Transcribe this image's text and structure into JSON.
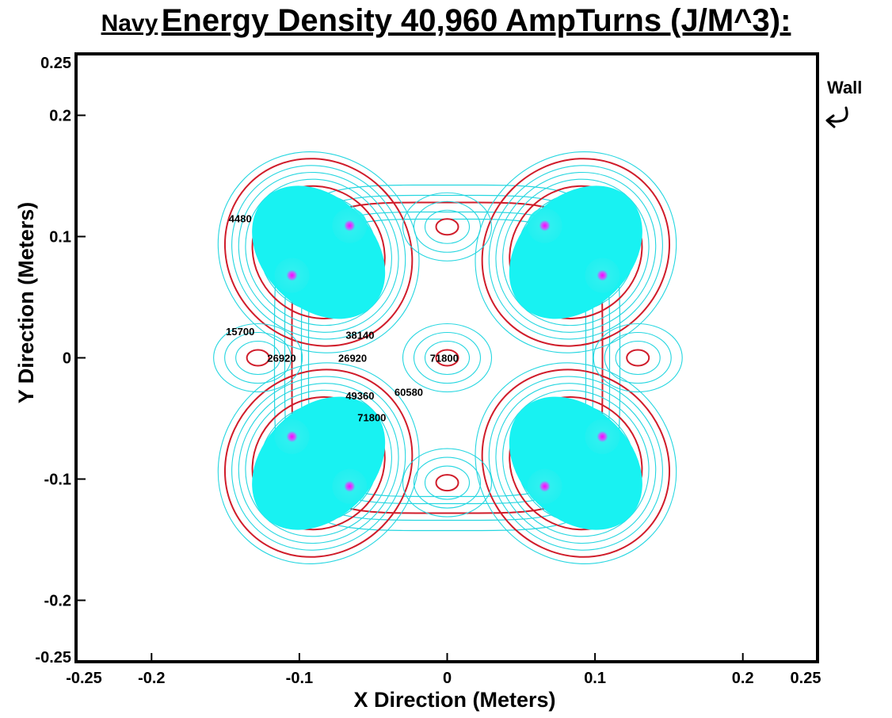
{
  "chart_data": {
    "type": "contour",
    "title_part1": "Navy",
    "title_part2": "Energy Density 40,960 AmpTurns (J/M^3):",
    "xlabel": "X Direction (Meters)",
    "ylabel": "Y  Direction (Meters)",
    "xlim": [
      -0.25,
      0.25
    ],
    "ylim": [
      -0.25,
      0.25
    ],
    "x_ticks": [
      {
        "value": -0.25,
        "label": "-0.25"
      },
      {
        "value": -0.2,
        "label": "-0.2"
      },
      {
        "value": -0.1,
        "label": "-0.1"
      },
      {
        "value": 0,
        "label": "0"
      },
      {
        "value": 0.1,
        "label": "0.1"
      },
      {
        "value": 0.2,
        "label": "0.2"
      },
      {
        "value": 0.25,
        "label": "0.25"
      }
    ],
    "y_ticks": [
      {
        "value": 0.25,
        "label": "0.25"
      },
      {
        "value": 0.2,
        "label": "0.2"
      },
      {
        "value": 0.1,
        "label": "0.1"
      },
      {
        "value": 0,
        "label": "0"
      },
      {
        "value": -0.1,
        "label": "-0.1"
      },
      {
        "value": -0.2,
        "label": "-0.2"
      },
      {
        "value": -0.25,
        "label": "-0.25"
      }
    ],
    "contour_labels": [
      {
        "text": "4480",
        "x": -0.14,
        "y": 0.115
      },
      {
        "text": "15700",
        "x": -0.14,
        "y": 0.022
      },
      {
        "text": "38140",
        "x": -0.059,
        "y": 0.019
      },
      {
        "text": "26920",
        "x": -0.112,
        "y": 0.0
      },
      {
        "text": "26920",
        "x": -0.064,
        "y": 0.0
      },
      {
        "text": "71800",
        "x": -0.002,
        "y": 0.0
      },
      {
        "text": "49360",
        "x": -0.059,
        "y": -0.031
      },
      {
        "text": "60580",
        "x": -0.026,
        "y": -0.028
      },
      {
        "text": "71800",
        "x": -0.051,
        "y": -0.049
      }
    ],
    "peaks": [
      {
        "x": -0.066,
        "y": 0.109
      },
      {
        "x": -0.105,
        "y": 0.068
      },
      {
        "x": 0.066,
        "y": 0.109
      },
      {
        "x": 0.105,
        "y": 0.068
      },
      {
        "x": -0.105,
        "y": -0.065
      },
      {
        "x": -0.066,
        "y": -0.106
      },
      {
        "x": 0.105,
        "y": -0.065
      },
      {
        "x": 0.066,
        "y": -0.106
      }
    ],
    "wall_label": "Wall",
    "colors": {
      "contour_minor": "#25d6e0",
      "contour_major": "#d01c2a",
      "core": "#18f2f2",
      "peak": "#ff00ff"
    }
  }
}
